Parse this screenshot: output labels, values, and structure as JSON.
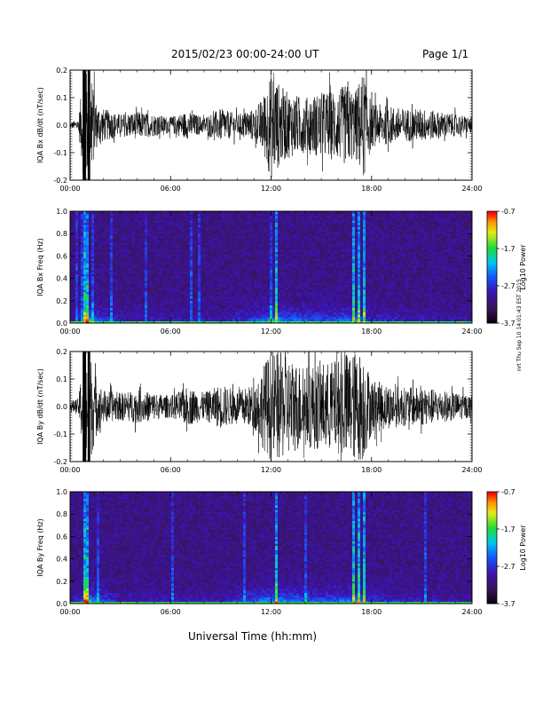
{
  "header": {
    "title": "2015/02/23  00:00-24:00 UT",
    "page": "Page 1/1"
  },
  "side_stamp": "nrt Thu Sep 10 14:01:43 EST 2015",
  "xlabel": "Universal Time (hh:mm)",
  "chart_data": [
    {
      "type": "line",
      "title": "",
      "ylabel": "IQA Bx dB/dt (nT/sec)",
      "xlim": [
        "00:00",
        "24:00"
      ],
      "xticks": [
        "00:00",
        "06:00",
        "12:00",
        "18:00",
        "24:00"
      ],
      "ylim": [
        -0.2,
        0.2
      ],
      "yticks": [
        "-0.2",
        "-0.1",
        "0.0",
        "0.1",
        "0.2"
      ],
      "activity_envelope": {
        "x_hours": [
          0,
          0.5,
          0.8,
          1.0,
          1.2,
          1.6,
          2.0,
          3.0,
          4.0,
          5.0,
          6.0,
          7.0,
          8.0,
          9.0,
          10.0,
          11.0,
          11.5,
          12.0,
          12.5,
          13.0,
          14.0,
          15.0,
          16.0,
          16.5,
          17.0,
          17.5,
          18.0,
          19.0,
          20.0,
          21.0,
          22.0,
          23.0,
          24.0
        ],
        "amplitude": [
          0.01,
          0.02,
          0.2,
          0.2,
          0.2,
          0.08,
          0.06,
          0.04,
          0.05,
          0.04,
          0.03,
          0.05,
          0.03,
          0.06,
          0.04,
          0.06,
          0.1,
          0.2,
          0.15,
          0.12,
          0.1,
          0.12,
          0.13,
          0.15,
          0.12,
          0.2,
          0.08,
          0.07,
          0.06,
          0.06,
          0.05,
          0.04,
          0.03
        ]
      }
    },
    {
      "type": "heatmap",
      "title": "",
      "ylabel": "IQA Bx Freq (Hz)",
      "xlim": [
        "00:00",
        "24:00"
      ],
      "xticks": [
        "00:00",
        "06:00",
        "12:00",
        "18:00",
        "24:00"
      ],
      "ylim": [
        0.0,
        1.0
      ],
      "yticks": [
        "0.0",
        "0.2",
        "0.4",
        "0.6",
        "0.8",
        "1.0"
      ],
      "colorbar": {
        "label": "Log10 Power",
        "ticks": [
          "-0.7",
          "-1.7",
          "-2.7",
          "-3.7"
        ],
        "range": [
          -3.7,
          -0.7
        ]
      },
      "intense_bands_hours": [
        0.9,
        1.0,
        12.3,
        16.9,
        17.3,
        17.5
      ]
    },
    {
      "type": "line",
      "title": "",
      "ylabel": "IQA By dB/dt (nT/sec)",
      "xlim": [
        "00:00",
        "24:00"
      ],
      "xticks": [
        "00:00",
        "06:00",
        "12:00",
        "18:00",
        "24:00"
      ],
      "ylim": [
        -0.2,
        0.2
      ],
      "yticks": [
        "-0.2",
        "-0.1",
        "0.0",
        "0.1",
        "0.2"
      ],
      "activity_envelope": {
        "x_hours": [
          0,
          0.5,
          0.8,
          1.0,
          1.2,
          1.6,
          2.0,
          3.0,
          4.0,
          5.0,
          6.0,
          7.0,
          8.0,
          9.0,
          10.0,
          11.0,
          11.5,
          12.0,
          12.5,
          13.0,
          14.0,
          15.0,
          16.0,
          16.5,
          17.0,
          17.5,
          18.0,
          19.0,
          20.0,
          21.0,
          22.0,
          23.0,
          24.0
        ],
        "amplitude": [
          0.02,
          0.03,
          0.2,
          0.2,
          0.2,
          0.1,
          0.06,
          0.05,
          0.06,
          0.05,
          0.04,
          0.07,
          0.05,
          0.08,
          0.06,
          0.08,
          0.15,
          0.2,
          0.2,
          0.18,
          0.15,
          0.16,
          0.17,
          0.2,
          0.2,
          0.2,
          0.1,
          0.08,
          0.07,
          0.07,
          0.06,
          0.05,
          0.04
        ]
      }
    },
    {
      "type": "heatmap",
      "title": "",
      "ylabel": "IQA By Freq (Hz)",
      "xlim": [
        "00:00",
        "24:00"
      ],
      "xticks": [
        "00:00",
        "06:00",
        "12:00",
        "18:00",
        "24:00"
      ],
      "ylim": [
        0.0,
        1.0
      ],
      "yticks": [
        "0.0",
        "0.2",
        "0.4",
        "0.6",
        "0.8",
        "1.0"
      ],
      "colorbar": {
        "label": "Log10 Power",
        "ticks": [
          "-0.7",
          "-1.7",
          "-2.7",
          "-3.7"
        ],
        "range": [
          -3.7,
          -0.7
        ]
      },
      "intense_bands_hours": [
        0.9,
        1.0,
        12.3,
        16.9,
        17.3,
        17.5
      ]
    }
  ]
}
